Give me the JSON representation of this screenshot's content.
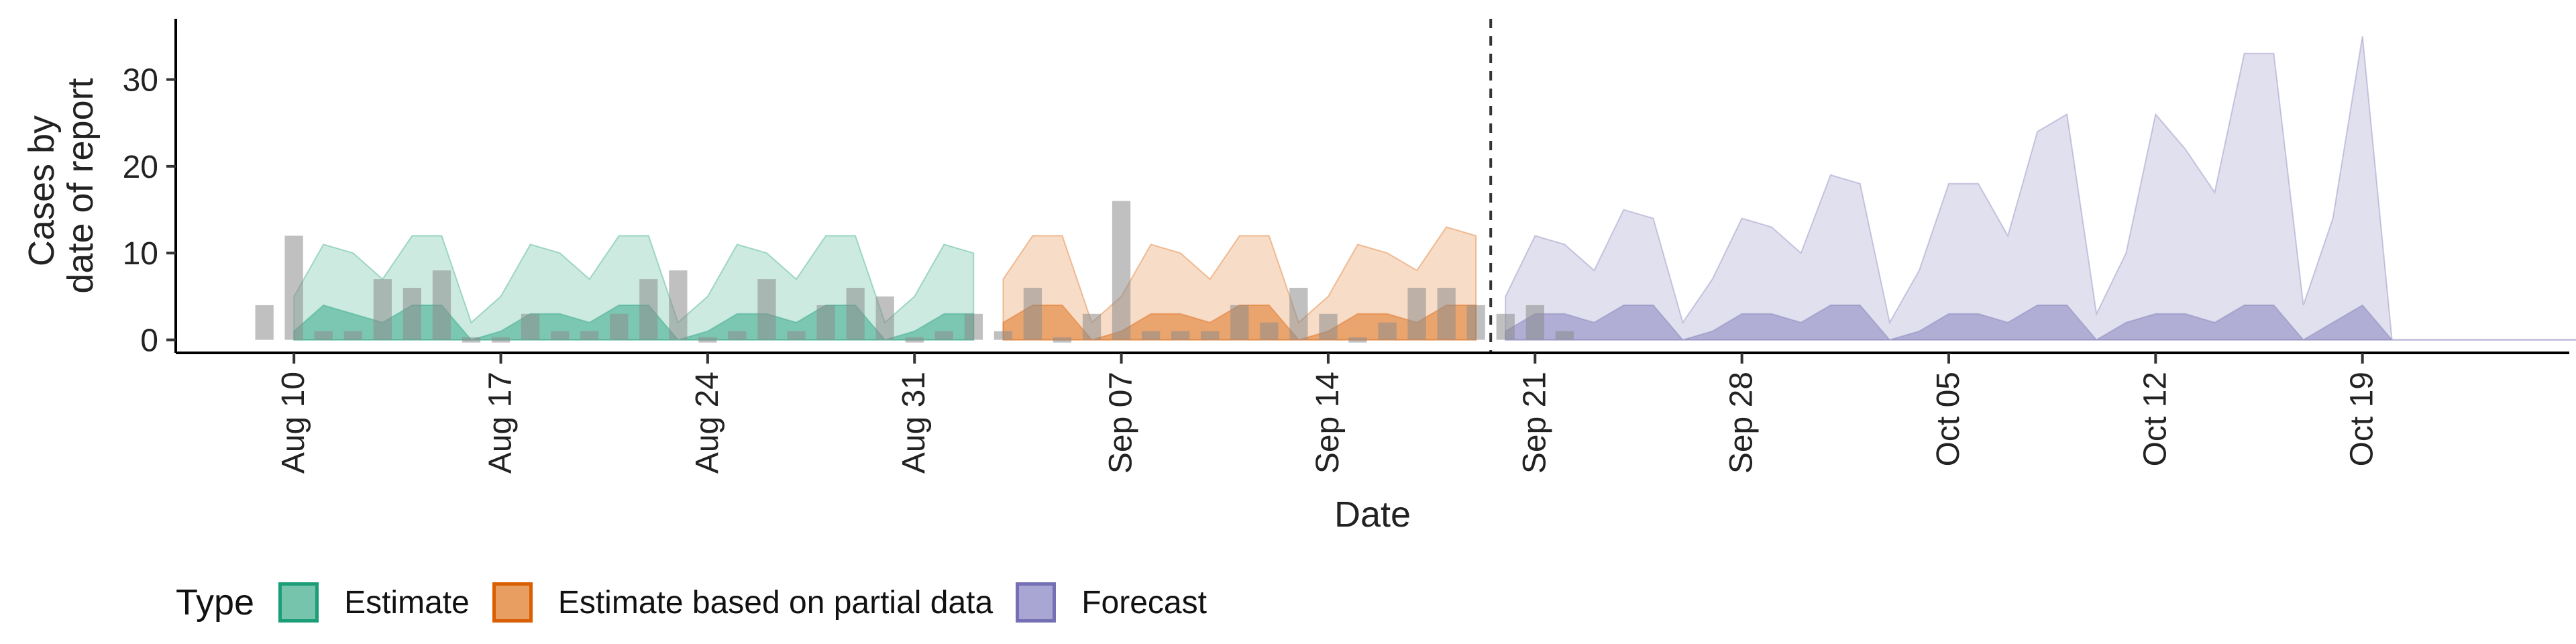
{
  "chart_data": {
    "type": "area",
    "title": "",
    "xlabel": "Date",
    "ylabel_lines": [
      "Cases by",
      "date of report"
    ],
    "ylim": [
      -1.5,
      37
    ],
    "yticks": [
      0,
      10,
      20,
      30
    ],
    "x_tick_labels": [
      "Aug 10",
      "Aug 17",
      "Aug 24",
      "Aug 31",
      "Sep 07",
      "Sep 14",
      "Sep 21",
      "Sep 28",
      "Oct 05",
      "Oct 12",
      "Oct 19"
    ],
    "xlim_day": [
      -4,
      77
    ],
    "vline_day": 40.5,
    "observed_cases": {
      "start": "Aug 09",
      "values": [
        4,
        12,
        1,
        1,
        7,
        6,
        8,
        0,
        0,
        3,
        1,
        1,
        3,
        7,
        8,
        0,
        1,
        7,
        1,
        4,
        6,
        5,
        0,
        1,
        3,
        1,
        6,
        0,
        3,
        16,
        1,
        1,
        1,
        4,
        2,
        6,
        3,
        0,
        2,
        6,
        6,
        4,
        3,
        4,
        1
      ]
    },
    "legend": {
      "title": "Type",
      "entries": [
        {
          "name": "Estimate",
          "fill": "#1b9e77",
          "border": "#1b9e77"
        },
        {
          "name": "Estimate based on partial data",
          "fill": "#d95f02",
          "border": "#d95f02"
        },
        {
          "name": "Forecast",
          "fill": "#7570b3",
          "border": "#7570b3"
        }
      ]
    },
    "series": [
      {
        "type": "Estimate",
        "color": "#1b9e77",
        "start": "Aug 10",
        "lower90": [
          0,
          0,
          0,
          0,
          0,
          0,
          0,
          0,
          0,
          0,
          0,
          0,
          0,
          0,
          0,
          0,
          0,
          0,
          0,
          0,
          0,
          0,
          0,
          0
        ],
        "upper90": [
          5,
          11,
          10,
          7,
          12,
          12,
          2,
          5,
          11,
          10,
          7,
          12,
          12,
          2,
          5,
          11,
          10,
          7,
          12,
          12,
          2,
          5,
          11,
          10
        ],
        "lower50": [
          0,
          0,
          0,
          0,
          0,
          0,
          0,
          0,
          0,
          0,
          0,
          0,
          0,
          0,
          0,
          0,
          0,
          0,
          0,
          0,
          0,
          0,
          0,
          0
        ],
        "upper50": [
          1,
          4,
          3,
          2,
          4,
          4,
          0,
          1,
          3,
          3,
          2,
          4,
          4,
          0,
          1,
          3,
          3,
          2,
          4,
          4,
          0,
          1,
          3,
          3
        ]
      },
      {
        "type": "Estimate based on partial data",
        "color": "#d95f02",
        "start": "Sep 03",
        "lower90": [
          0,
          0,
          0,
          0,
          0,
          0,
          0,
          0,
          0,
          0,
          0,
          0,
          0,
          0,
          0,
          0,
          0
        ],
        "upper90": [
          7,
          12,
          12,
          2,
          5,
          11,
          10,
          7,
          12,
          12,
          2,
          5,
          11,
          10,
          8,
          13,
          12
        ],
        "lower50": [
          0,
          0,
          0,
          0,
          0,
          0,
          0,
          0,
          0,
          0,
          0,
          0,
          0,
          0,
          0,
          0,
          0
        ],
        "upper50": [
          2,
          4,
          4,
          0,
          1,
          3,
          3,
          2,
          4,
          4,
          0,
          1,
          3,
          3,
          2,
          4,
          4
        ]
      },
      {
        "type": "Forecast",
        "color": "#7570b3",
        "start": "Sep 20",
        "lower90": [
          0,
          0,
          0,
          0,
          0,
          0,
          0,
          0,
          0,
          0,
          0,
          0,
          0,
          0,
          0,
          0,
          0,
          0,
          0,
          0,
          0,
          0,
          0,
          0,
          0,
          0,
          0,
          0,
          0,
          0,
          0,
          0,
          0,
          0,
          0,
          0,
          0,
          0,
          0,
          0,
          0
        ],
        "upper90": [
          5,
          12,
          11,
          8,
          15,
          14,
          2,
          7,
          14,
          13,
          10,
          19,
          18,
          2,
          8,
          18,
          18,
          12,
          24,
          26,
          3,
          10,
          26,
          22,
          17,
          33,
          33,
          4,
          14,
          35,
          0,
          0,
          0,
          0,
          0,
          0,
          0,
          0,
          0,
          0,
          0
        ],
        "lower50": [
          0,
          0,
          0,
          0,
          0,
          0,
          0,
          0,
          0,
          0,
          0,
          0,
          0,
          0,
          0,
          0,
          0,
          0,
          0,
          0,
          0,
          0,
          0,
          0,
          0,
          0,
          0,
          0,
          0,
          0,
          0,
          0,
          0,
          0,
          0,
          0,
          0,
          0,
          0,
          0,
          0
        ],
        "upper50": [
          1,
          3,
          3,
          2,
          4,
          4,
          0,
          1,
          3,
          3,
          2,
          4,
          4,
          0,
          1,
          3,
          3,
          2,
          4,
          4,
          0,
          2,
          3,
          3,
          2,
          4,
          4,
          0,
          2,
          4,
          0,
          0,
          0,
          0,
          0,
          0,
          0,
          0,
          0,
          0,
          0
        ]
      }
    ]
  }
}
